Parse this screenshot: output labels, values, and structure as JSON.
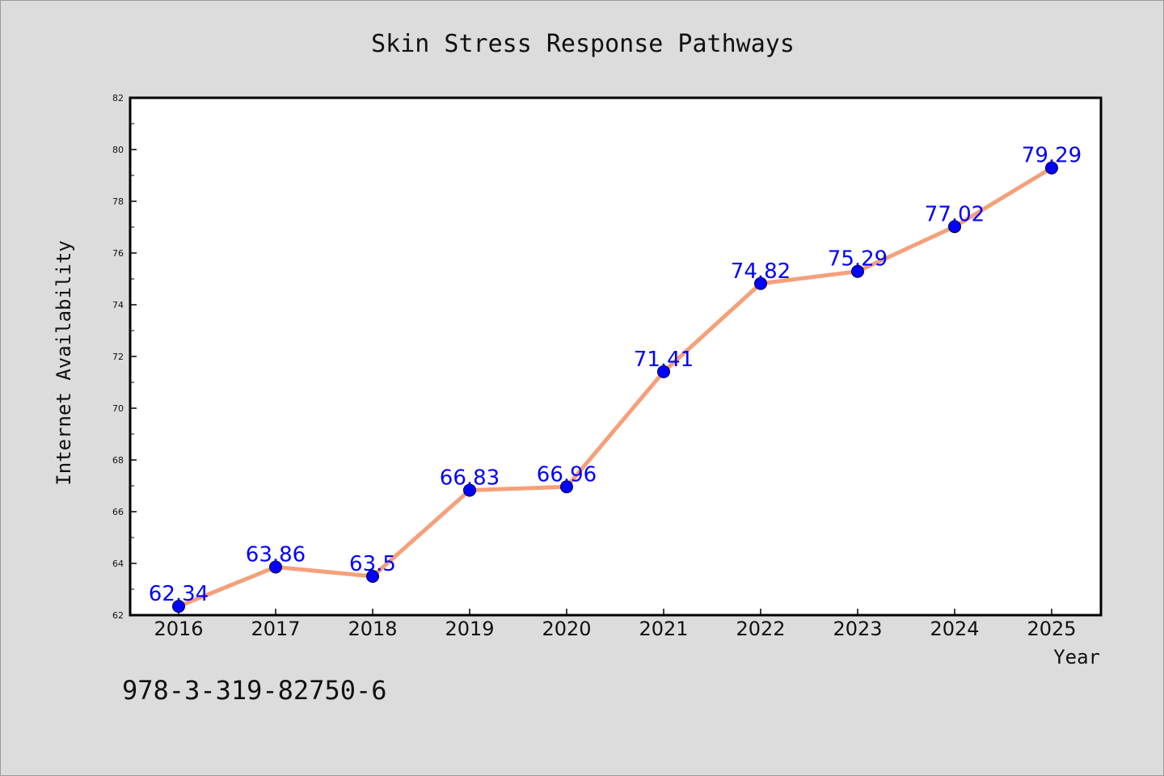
{
  "chart_data": {
    "type": "line",
    "title": "Skin Stress Response Pathways",
    "xlabel": "Year",
    "ylabel": "Internet Availability",
    "categories": [
      "2016",
      "2017",
      "2018",
      "2019",
      "2020",
      "2021",
      "2022",
      "2023",
      "2024",
      "2025"
    ],
    "values": [
      62.34,
      63.86,
      63.5,
      66.83,
      66.96,
      71.41,
      74.82,
      75.29,
      77.02,
      79.29
    ],
    "data_labels": [
      "62.34",
      "63.86",
      "63.5",
      "66.83",
      "66.96",
      "71.41",
      "74.82",
      "75.29",
      "77.02",
      "79.29"
    ],
    "ylim": [
      62,
      82
    ],
    "yticks": [
      62,
      64,
      66,
      68,
      70,
      72,
      74,
      76,
      78,
      80,
      82
    ],
    "grid": false,
    "legend": "none",
    "line_color": "#f4a07a",
    "marker_color": "#0000ff",
    "label_color": "#0000ff",
    "background_color": "#dcdcdc",
    "plot_background": "#ffffff"
  },
  "annotation": "978-3-319-82750-6"
}
